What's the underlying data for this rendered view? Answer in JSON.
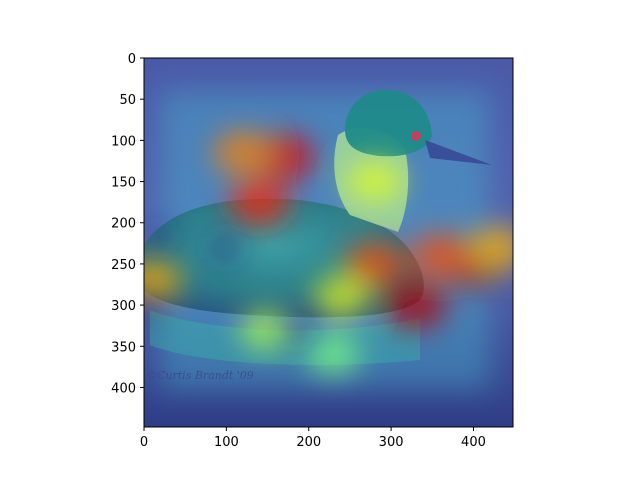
{
  "chart_data": {
    "type": "heatmap",
    "title": "",
    "xlabel": "",
    "ylabel": "",
    "xlim": [
      0,
      448
    ],
    "ylim": [
      448,
      0
    ],
    "x_ticks": [
      0,
      100,
      200,
      300,
      400
    ],
    "y_ticks": [
      0,
      50,
      100,
      150,
      200,
      250,
      300,
      350,
      400
    ],
    "colormap": "jet",
    "image_subject": "grebe-on-water",
    "grid": false,
    "watermark_text": "©Curtis Brandt '09",
    "hotspots": [
      {
        "x": 170,
        "y": 120,
        "intensity": 0.9
      },
      {
        "x": 120,
        "y": 115,
        "intensity": 0.75
      },
      {
        "x": 280,
        "y": 150,
        "intensity": 0.6
      },
      {
        "x": 400,
        "y": 250,
        "intensity": 0.95
      },
      {
        "x": 360,
        "y": 240,
        "intensity": 0.8
      },
      {
        "x": 280,
        "y": 250,
        "intensity": 0.8
      },
      {
        "x": 330,
        "y": 300,
        "intensity": 0.95
      },
      {
        "x": 140,
        "y": 175,
        "intensity": 0.85
      },
      {
        "x": 10,
        "y": 270,
        "intensity": 0.7
      },
      {
        "x": 240,
        "y": 290,
        "intensity": 0.6
      },
      {
        "x": 150,
        "y": 330,
        "intensity": 0.55
      },
      {
        "x": 230,
        "y": 360,
        "intensity": 0.5
      },
      {
        "x": 430,
        "y": 230,
        "intensity": 0.7
      }
    ]
  }
}
